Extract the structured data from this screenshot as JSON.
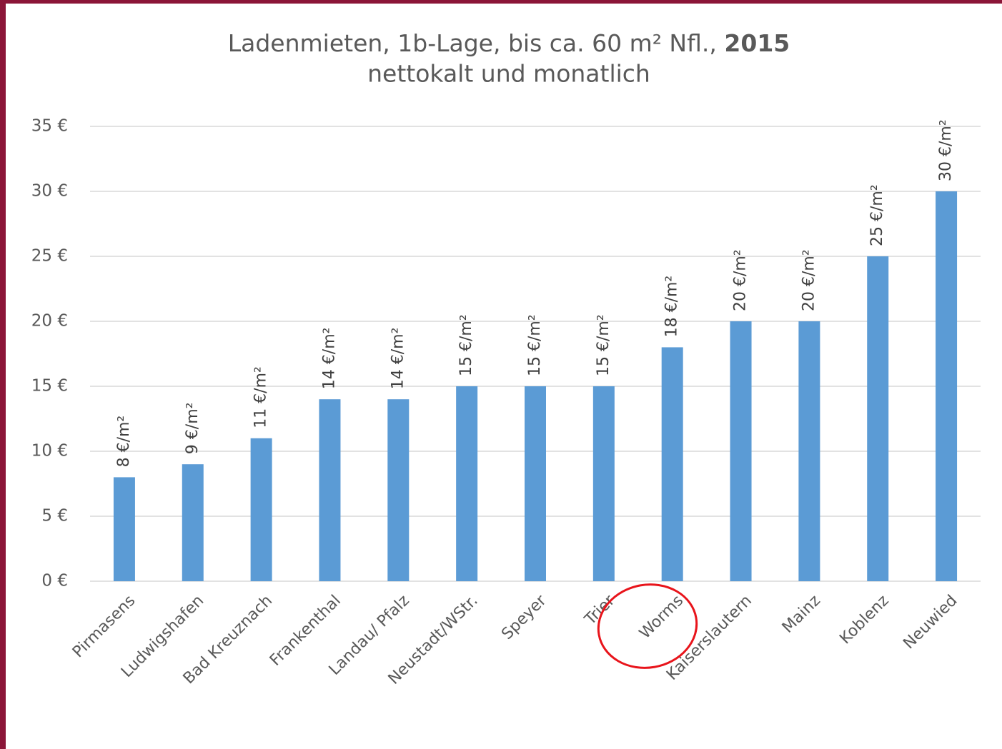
{
  "chart_data": {
    "type": "bar",
    "title": "Ladenmieten, 1b-Lage, bis ca. 60 m² Nfl.,",
    "title_bold": "2015",
    "subtitle": "nettokalt und monatlich",
    "categories": [
      "Pirmasens",
      "Ludwigshafen",
      "Bad Kreuznach",
      "Frankenthal",
      "Landau/ Pfalz",
      "Neustadt/WStr.",
      "Speyer",
      "Trier",
      "Worms",
      "Kaiserslautern",
      "Mainz",
      "Koblenz",
      "Neuwied"
    ],
    "values": [
      8,
      9,
      11,
      14,
      14,
      15,
      15,
      15,
      18,
      20,
      20,
      25,
      30
    ],
    "value_labels": [
      "8 €/m²",
      "9 €/m²",
      "11 €/m²",
      "14 €/m²",
      "14 €/m²",
      "15 €/m²",
      "15 €/m²",
      "15 €/m²",
      "18 €/m²",
      "20 €/m²",
      "20 €/m²",
      "25 €/m²",
      "30 €/m²"
    ],
    "color": "#5b9bd5",
    "ylim": [
      0,
      35
    ],
    "yticks": [
      {
        "value": 0,
        "label": "0 €"
      },
      {
        "value": 5,
        "label": "5 €"
      },
      {
        "value": 10,
        "label": "10 €"
      },
      {
        "value": 15,
        "label": "15 €"
      },
      {
        "value": 20,
        "label": "20 €"
      },
      {
        "value": 25,
        "label": "25 €"
      },
      {
        "value": 30,
        "label": "30 €"
      },
      {
        "value": 35,
        "label": "35 €"
      }
    ],
    "grid": true
  }
}
